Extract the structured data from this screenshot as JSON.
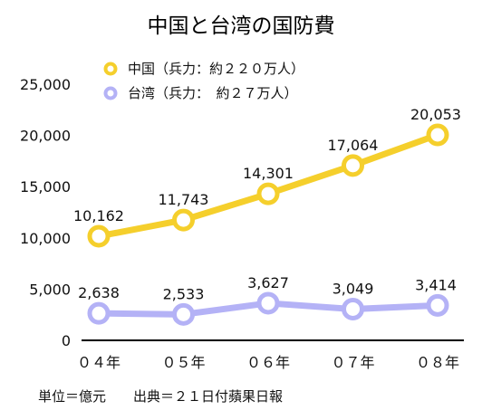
{
  "chart_data": {
    "type": "line",
    "title": "中国と台湾の国防費",
    "categories": [
      "０４年",
      "０５年",
      "０６年",
      "０７年",
      "０８年"
    ],
    "ylim": [
      0,
      25000
    ],
    "yticks": [
      0,
      5000,
      10000,
      15000,
      20000,
      25000
    ],
    "ytick_labels": [
      "0",
      "5,000",
      "10,000",
      "15,000",
      "20,000",
      "25,000"
    ],
    "grid": false,
    "legend_position": "top-left",
    "series": [
      {
        "name": "中国（兵力：約２２０万人）",
        "color": "#f5cf2c",
        "values": [
          10162,
          11743,
          14301,
          17064,
          20053
        ],
        "labels": [
          "10,162",
          "11,743",
          "14,301",
          "17,064",
          "20,053"
        ]
      },
      {
        "name": "台湾（兵力：　約２７万人）",
        "color": "#b4b2f6",
        "values": [
          2638,
          2533,
          3627,
          3049,
          3414
        ],
        "labels": [
          "2,638",
          "2,533",
          "3,627",
          "3,049",
          "3,414"
        ]
      }
    ],
    "footnote": "単位＝億元　　出典＝２１日付蘋果日報"
  }
}
